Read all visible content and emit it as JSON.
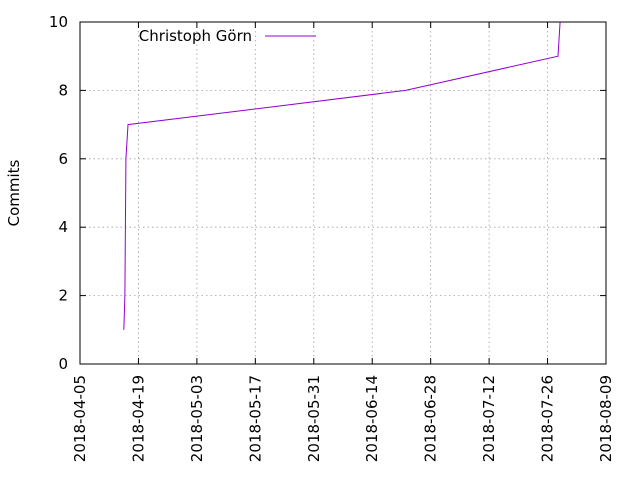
{
  "chart_data": {
    "type": "line",
    "title": "",
    "xlabel": "",
    "ylabel": "Commits",
    "xlim": [
      "2018-04-05",
      "2018-08-09"
    ],
    "ylim": [
      0,
      10
    ],
    "x_ticks": [
      "2018-04-05",
      "2018-04-19",
      "2018-05-03",
      "2018-05-17",
      "2018-05-31",
      "2018-06-14",
      "2018-06-28",
      "2018-07-12",
      "2018-07-26",
      "2018-08-09"
    ],
    "y_ticks": [
      0,
      2,
      4,
      6,
      8,
      10
    ],
    "grid": true,
    "legend": "top-left",
    "series": [
      {
        "name": "Christoph Görn",
        "color": "#9400d3",
        "points": [
          {
            "x": "2018-04-15T12:00",
            "y": 1
          },
          {
            "x": "2018-04-15T18:00",
            "y": 2
          },
          {
            "x": "2018-04-16T00:00",
            "y": 6
          },
          {
            "x": "2018-04-16T12:00",
            "y": 7
          },
          {
            "x": "2018-06-22T00:00",
            "y": 8
          },
          {
            "x": "2018-07-28T12:00",
            "y": 9
          },
          {
            "x": "2018-07-29T00:00",
            "y": 10
          },
          {
            "x": "2018-07-29T06:00",
            "y": 11
          }
        ]
      }
    ]
  }
}
